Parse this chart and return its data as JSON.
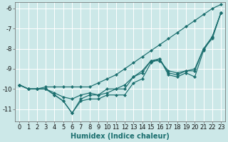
{
  "xlabel": "Humidex (Indice chaleur)",
  "ylabel": "",
  "background_color": "#cce8e8",
  "grid_color": "#ffffff",
  "line_color": "#1a6e6e",
  "x_values": [
    0,
    1,
    2,
    3,
    4,
    5,
    6,
    7,
    8,
    9,
    10,
    11,
    12,
    13,
    14,
    15,
    16,
    17,
    18,
    19,
    20,
    21,
    22,
    23
  ],
  "lines": [
    [
      -9.8,
      -10.0,
      -10.0,
      -10.0,
      -10.3,
      -10.6,
      -11.2,
      -10.5,
      -10.3,
      -10.3,
      -10.0,
      -10.0,
      -10.0,
      -9.4,
      -9.2,
      -8.6,
      -8.5,
      -9.2,
      -9.3,
      -9.1,
      -9.1,
      -8.0,
      -7.4,
      -6.2
    ],
    [
      -9.8,
      -10.0,
      -10.0,
      -10.0,
      -10.3,
      -10.6,
      -11.2,
      -10.6,
      -10.5,
      -10.5,
      -10.3,
      -10.3,
      -10.3,
      -9.7,
      -9.5,
      -8.7,
      -8.5,
      -9.3,
      -9.4,
      -9.2,
      -9.4,
      -8.1,
      -7.4,
      -6.2
    ],
    [
      -9.8,
      -10.0,
      -10.0,
      -10.0,
      -10.2,
      -10.4,
      -10.5,
      -10.3,
      -10.2,
      -10.3,
      -10.2,
      -10.0,
      -9.8,
      -9.4,
      -9.1,
      -8.6,
      -8.6,
      -9.1,
      -9.2,
      -9.1,
      -9.0,
      -8.0,
      -7.5,
      -6.2
    ],
    [
      -9.8,
      -10.0,
      -10.0,
      -9.9,
      -9.9,
      -9.9,
      -9.9,
      -9.9,
      -9.9,
      -9.7,
      -9.5,
      -9.3,
      -9.0,
      -8.7,
      -8.4,
      -8.1,
      -7.8,
      -7.5,
      -7.2,
      -6.9,
      -6.6,
      -6.3,
      -6.0,
      -5.8
    ]
  ],
  "ylim": [
    -11.6,
    -5.7
  ],
  "xlim": [
    -0.5,
    23.5
  ],
  "yticks": [
    -6,
    -7,
    -8,
    -9,
    -10,
    -11
  ],
  "xticks": [
    0,
    1,
    2,
    3,
    4,
    5,
    6,
    7,
    8,
    9,
    10,
    11,
    12,
    13,
    14,
    15,
    16,
    17,
    18,
    19,
    20,
    21,
    22,
    23
  ],
  "tick_fontsize": 6,
  "xlabel_fontsize": 7
}
